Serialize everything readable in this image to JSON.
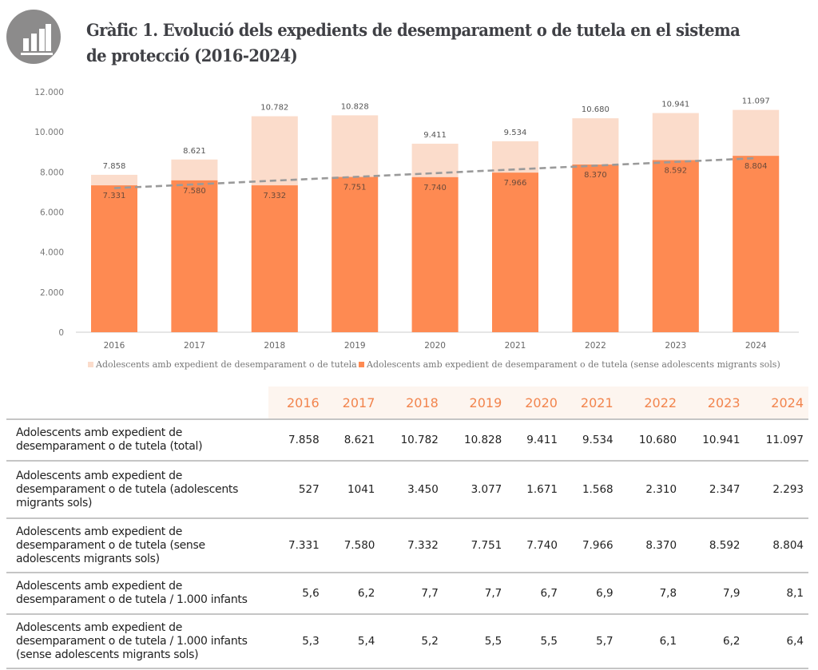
{
  "header": {
    "icon": "bar-chart-icon",
    "title": "Gràfic 1. Evolució dels expedients de desemparament o de tutela en el sistema de protecció (2016-2024)"
  },
  "colors": {
    "total_series": "#fbdccb",
    "sense_series": "#fe8a52",
    "trendline": "#9a9a9a",
    "header_accent": "#f2844d",
    "header_bg": "#fdf5ef"
  },
  "chart_data": {
    "type": "bar",
    "stacked_overlay": true,
    "title": "",
    "xlabel": "",
    "ylabel": "",
    "ylim": [
      0,
      12000
    ],
    "yticks": [
      0,
      2000,
      4000,
      6000,
      8000,
      10000,
      12000
    ],
    "ytick_labels": [
      "0",
      "2.000",
      "4.000",
      "6.000",
      "8.000",
      "10.000",
      "12.000"
    ],
    "categories": [
      "2016",
      "2017",
      "2018",
      "2019",
      "2020",
      "2021",
      "2022",
      "2023",
      "2024"
    ],
    "series": [
      {
        "name": "Adolescents amb expedient de desemparament o de tutela",
        "values": [
          7858,
          8621,
          10782,
          10828,
          9411,
          9534,
          10680,
          10941,
          11097
        ],
        "labels": [
          "7.858",
          "8.621",
          "10.782",
          "10.828",
          "9.411",
          "9.534",
          "10.680",
          "10.941",
          "11.097"
        ],
        "color": "#fbdccb"
      },
      {
        "name": "Adolescents amb expedient de desemparament o de tutela (sense adolescents migrants sols)",
        "values": [
          7331,
          7580,
          7332,
          7751,
          7740,
          7966,
          8370,
          8592,
          8804
        ],
        "labels": [
          "7.331",
          "7.580",
          "7.332",
          "7.751",
          "7.740",
          "7.966",
          "8.370",
          "8.592",
          "8.804"
        ],
        "color": "#fe8a52"
      }
    ],
    "trendline": {
      "type": "linear",
      "of_series": 1,
      "style": "dashed",
      "color": "#9a9a9a"
    },
    "grid": false,
    "legend": "bottom"
  },
  "table": {
    "columns": [
      "2016",
      "2017",
      "2018",
      "2019",
      "2020",
      "2021",
      "2022",
      "2023",
      "2024"
    ],
    "rows": [
      {
        "label": "Adolescents amb expedient de desemparament o de tutela (total)",
        "values": [
          "7.858",
          "8.621",
          "10.782",
          "10.828",
          "9.411",
          "9.534",
          "10.680",
          "10.941",
          "11.097"
        ]
      },
      {
        "label": "Adolescents amb expedient de desemparament o de tutela (adolescents migrants sols)",
        "values": [
          "527",
          "1041",
          "3.450",
          "3.077",
          "1.671",
          "1.568",
          "2.310",
          "2.347",
          "2.293"
        ]
      },
      {
        "label": "Adolescents amb expedient de desemparament o de tutela (sense adolescents migrants sols)",
        "values": [
          "7.331",
          "7.580",
          "7.332",
          "7.751",
          "7.740",
          "7.966",
          "8.370",
          "8.592",
          "8.804"
        ]
      },
      {
        "label": "Adolescents amb expedient de desemparament o de tutela / 1.000 infants",
        "values": [
          "5,6",
          "6,2",
          "7,7",
          "7,7",
          "6,7",
          "6,9",
          "7,8",
          "7,9",
          "8,1"
        ]
      },
      {
        "label": "Adolescents amb expedient de desemparament o de tutela / 1.000 infants (sense adolescents migrants sols)",
        "values": [
          "5,3",
          "5,4",
          "5,2",
          "5,5",
          "5,5",
          "5,7",
          "6,1",
          "6,2",
          "6,4"
        ]
      }
    ]
  }
}
